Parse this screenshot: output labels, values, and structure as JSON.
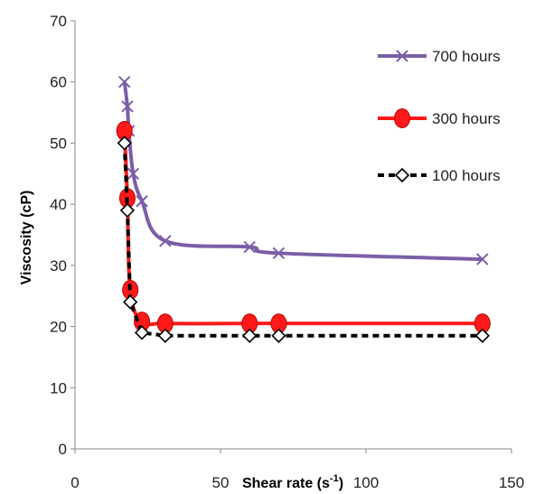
{
  "chart_data": {
    "type": "line",
    "title": "",
    "xlabel": "Shear rate (s",
    "xlabel_sup": "-1",
    "xlabel_end": ")",
    "ylabel": "Viscosity (cP)",
    "xlim": [
      0,
      150
    ],
    "ylim": [
      0,
      70
    ],
    "xticks": [
      0,
      50,
      100,
      150
    ],
    "yticks": [
      0,
      10,
      20,
      30,
      40,
      50,
      60,
      70
    ],
    "grid": false,
    "legend_position": "top-right",
    "series": [
      {
        "name": "700 hours",
        "color": "#7b5ea7",
        "marker": "x",
        "dash": "solid",
        "x": [
          17,
          18,
          18.5,
          20,
          23,
          31,
          60,
          70,
          140
        ],
        "y": [
          60,
          56,
          52,
          45,
          40.5,
          34,
          33,
          32,
          31
        ]
      },
      {
        "name": "300 hours",
        "color": "#ff1a1a",
        "marker": "circle",
        "dash": "solid",
        "x": [
          17,
          18,
          19,
          23,
          31,
          60,
          70,
          140
        ],
        "y": [
          52,
          41,
          26,
          20.8,
          20.5,
          20.5,
          20.5,
          20.5
        ]
      },
      {
        "name": "100 hours",
        "color": "#000000",
        "marker": "diamond",
        "dash": "dashed",
        "x": [
          17,
          18,
          19,
          23,
          31,
          60,
          70,
          140
        ],
        "y": [
          50,
          39,
          24,
          19,
          18.5,
          18.5,
          18.5,
          18.5
        ]
      }
    ]
  }
}
